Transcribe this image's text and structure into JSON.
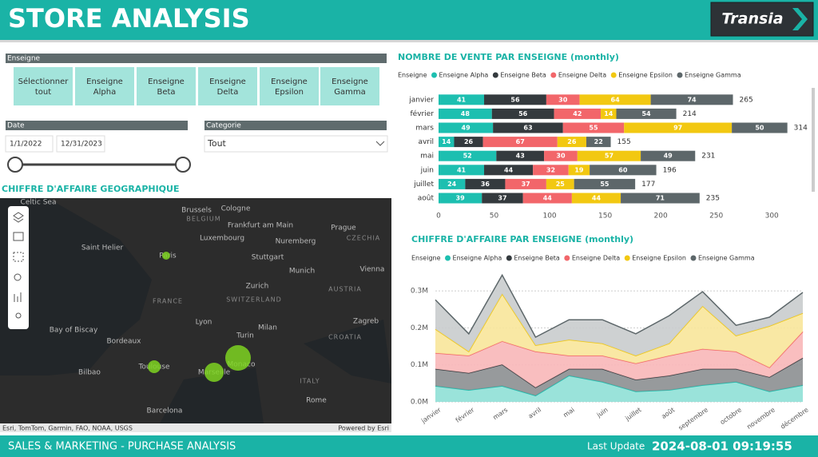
{
  "header": {
    "title": "STORE ANALYSIS",
    "logo": "Transia"
  },
  "filters": {
    "enseigne": {
      "label": "Enseigne",
      "options": [
        "Sélectionner tout",
        "Enseigne Alpha",
        "Enseigne Beta",
        "Enseigne Delta",
        "Enseigne Epsilon",
        "Enseigne Gamma"
      ]
    },
    "date": {
      "label": "Date",
      "start": "1/1/2022",
      "end": "12/31/2023"
    },
    "categorie": {
      "label": "Categorie",
      "value": "Tout"
    }
  },
  "map": {
    "title": "CHIFFRE D'AFFAIRE GEOGRAPHIQUE",
    "labels": [
      "Celtic Sea",
      "Brussels",
      "BELGIUM",
      "Cologne",
      "Frankfurt am Main",
      "Luxembourg",
      "Prague",
      "CZECHIA",
      "Nuremberg",
      "Saint Helier",
      "Paris",
      "Stuttgart",
      "Munich",
      "Vienna",
      "Zurich",
      "SWITZERLAND",
      "AUSTRIA",
      "FRANCE",
      "Bay of Biscay",
      "Lyon",
      "Turin",
      "Milan",
      "Zagreb",
      "CROATIA",
      "Bordeaux",
      "Toulouse",
      "Marseille",
      "Monaco",
      "Bilbao",
      "ITALY",
      "Barcelona",
      "Rome"
    ],
    "attribution": "Esri, TomTom, Garmin, FAO, NOAA, USGS",
    "powered_by": "Powered by Esri"
  },
  "chart_data": [
    {
      "type": "bar",
      "orientation": "horizontal",
      "stacked": true,
      "title": "NOMBRE DE VENTE PAR ENSEIGNE (monthly)",
      "legend_title": "Enseigne",
      "categories": [
        "janvier",
        "février",
        "mars",
        "avril",
        "mai",
        "juin",
        "juillet",
        "août"
      ],
      "series": [
        {
          "name": "Enseigne Alpha",
          "color": "#1dbfb0",
          "values": [
            41,
            48,
            49,
            14,
            52,
            41,
            24,
            39
          ]
        },
        {
          "name": "Enseigne Beta",
          "color": "#343a3e",
          "values": [
            56,
            56,
            63,
            26,
            43,
            44,
            36,
            37
          ]
        },
        {
          "name": "Enseigne Delta",
          "color": "#f2666a",
          "values": [
            30,
            42,
            55,
            67,
            30,
            32,
            37,
            44
          ]
        },
        {
          "name": "Enseigne Epsilon",
          "color": "#f2c811",
          "values": [
            64,
            14,
            97,
            26,
            57,
            19,
            25,
            44
          ]
        },
        {
          "name": "Enseigne Gamma",
          "color": "#5d676a",
          "values": [
            74,
            54,
            50,
            22,
            49,
            60,
            55,
            71
          ]
        }
      ],
      "totals": [
        265,
        214,
        314,
        155,
        231,
        196,
        177,
        235
      ],
      "xlim": [
        0,
        320
      ],
      "xticks": [
        0,
        50,
        100,
        150,
        200,
        250,
        300
      ]
    },
    {
      "type": "area",
      "stacked": true,
      "title": "CHIFFRE D'AFFAIRE PAR ENSEIGNE (monthly)",
      "legend_title": "Enseigne",
      "categories": [
        "janvier",
        "février",
        "mars",
        "avril",
        "mai",
        "juin",
        "juillet",
        "août",
        "septembre",
        "octobre",
        "novembre",
        "décembre"
      ],
      "series": [
        {
          "name": "Enseigne Alpha",
          "color": "#8fe0d6",
          "values": [
            43000,
            32000,
            43000,
            17000,
            71000,
            54000,
            28000,
            32000,
            45000,
            54000,
            28000,
            45000
          ]
        },
        {
          "name": "Enseigne Beta",
          "color": "#8c8f91",
          "values": [
            46000,
            46000,
            58000,
            22000,
            18000,
            35000,
            32000,
            39000,
            44000,
            35000,
            39000,
            74000
          ]
        },
        {
          "name": "Enseigne Delta",
          "color": "#f8b7b8",
          "values": [
            43000,
            47000,
            63000,
            97000,
            36000,
            36000,
            44000,
            54000,
            54000,
            47000,
            26000,
            71000
          ]
        },
        {
          "name": "Enseigne Epsilon",
          "color": "#f8e59a",
          "values": [
            65000,
            11000,
            128000,
            17000,
            43000,
            33000,
            21000,
            33000,
            116000,
            43000,
            112000,
            50000
          ]
        },
        {
          "name": "Enseigne Gamma",
          "color": "#c9cccd",
          "values": [
            79000,
            48000,
            51000,
            22000,
            54000,
            64000,
            59000,
            75000,
            39000,
            28000,
            24000,
            56000
          ]
        }
      ],
      "line_colors": [
        "#1dbfb0",
        "#343a3e",
        "#f2666a",
        "#f2c811",
        "#5d676a"
      ],
      "ylim": [
        0,
        350000
      ],
      "yticks": [
        {
          "value": 0,
          "label": "0.0M"
        },
        {
          "value": 100000,
          "label": "0.1M"
        },
        {
          "value": 200000,
          "label": "0.2M"
        },
        {
          "value": 300000,
          "label": "0.3M"
        }
      ],
      "grid": true
    }
  ],
  "footer": {
    "title": "SALES & MARKETING - PURCHASE ANALYSIS",
    "last_update_label": "Last Update",
    "last_update": "2024-08-01 09:19:55"
  }
}
